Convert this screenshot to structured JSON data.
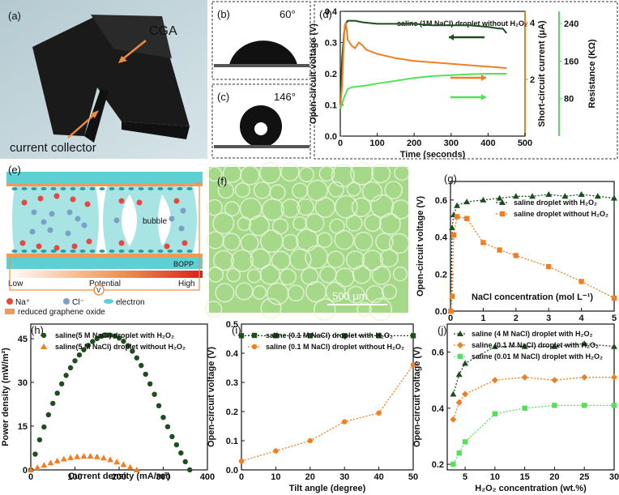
{
  "colors": {
    "dark_green": "#1e4d1e",
    "orange": "#f07e22",
    "light_green": "#55e05a",
    "teal": "#48c8cc",
    "micro_bg": "#a6d88a"
  },
  "panel_a": {
    "label": "(a)",
    "cga": "CGA",
    "collector": "current collector"
  },
  "panel_b": {
    "label": "(b)",
    "angle": "60°"
  },
  "panel_c": {
    "label": "(c)",
    "angle": "146°"
  },
  "panel_d": {
    "label": "(d)"
  },
  "panel_e": {
    "label": "(e)",
    "bubble": "bubble",
    "bopp": "BOPP",
    "low": "Low",
    "potential": "Potential",
    "high": "High",
    "volt": "V",
    "na": "Na⁺",
    "cl": "Cl⁻",
    "electron": "electron",
    "rgo": "reduced graphene oxide"
  },
  "panel_f": {
    "label": "(f)",
    "scale": "500 μm"
  },
  "panel_g": {
    "label": "(g)"
  },
  "panel_h": {
    "label": "(h)"
  },
  "panel_i": {
    "label": "(i)"
  },
  "panel_j": {
    "label": "(j)"
  },
  "chart_data": [
    {
      "id": "d",
      "type": "line",
      "title": "saline (1M NaCl) droplet without H₂O₂",
      "xlabel": "Time (seconds)",
      "ylabel": "Open-circuit voltage (V)",
      "ylabel_right1": "Short-circuit current (μA)",
      "ylabel_right2": "Resistance (KΩ)",
      "xlim": [
        0,
        500
      ],
      "xticks": [
        0,
        100,
        200,
        300,
        400,
        500
      ],
      "ylim": [
        0,
        0.4
      ],
      "yticks": [
        0.0,
        0.1,
        0.2,
        0.3,
        0.4
      ],
      "ylim_right1": [
        0,
        4.4
      ],
      "yticks_right1": [
        2,
        4
      ],
      "ylim_right2": [
        0,
        266
      ],
      "yticks_right2": [
        80,
        160,
        240
      ],
      "series": [
        {
          "name": "Open-circuit voltage",
          "axis": "left",
          "x": [
            0,
            5,
            10,
            15,
            20,
            40,
            60,
            100,
            150,
            200,
            250,
            300,
            350,
            400,
            430,
            440,
            450
          ],
          "values": [
            0.1,
            0.25,
            0.33,
            0.36,
            0.37,
            0.37,
            0.365,
            0.36,
            0.36,
            0.36,
            0.355,
            0.355,
            0.355,
            0.35,
            0.345,
            0.345,
            0.33
          ]
        },
        {
          "name": "Short-circuit current",
          "axis": "right1",
          "x": [
            0,
            5,
            10,
            12,
            15,
            18,
            20,
            25,
            30,
            40,
            50,
            60,
            70,
            100,
            150,
            200,
            250,
            300,
            350,
            400,
            450
          ],
          "values": [
            1.0,
            1.8,
            3.5,
            3.9,
            4.0,
            3.7,
            3.4,
            3.3,
            3.2,
            3.1,
            3.3,
            3.2,
            3.05,
            2.9,
            2.75,
            2.65,
            2.6,
            2.55,
            2.5,
            2.45,
            2.4
          ]
        },
        {
          "name": "Resistance",
          "axis": "right2",
          "x": [
            0,
            5,
            10,
            20,
            30,
            50,
            70,
            100,
            150,
            200,
            250,
            300,
            350,
            400,
            450
          ],
          "values": [
            58,
            70,
            82,
            100,
            104,
            106,
            108,
            112,
            118,
            124,
            128,
            130,
            132,
            133,
            133
          ]
        }
      ]
    },
    {
      "id": "g",
      "type": "line",
      "xlabel": "NaCl concentration (mol L⁻¹)",
      "ylabel": "Open-circuit voltage (V)",
      "xlim": [
        0,
        5
      ],
      "xticks": [
        0,
        1,
        2,
        3,
        4,
        5
      ],
      "ylim": [
        0,
        0.7
      ],
      "yticks": [
        0.0,
        0.2,
        0.4,
        0.6
      ],
      "series": [
        {
          "name": "saline droplet with H₂O₂",
          "marker": "triangle",
          "x": [
            0.01,
            0.05,
            0.1,
            0.2,
            0.5,
            1,
            1.5,
            2,
            2.5,
            3,
            3.5,
            4,
            4.5,
            5
          ],
          "values": [
            0.0,
            0.45,
            0.52,
            0.57,
            0.59,
            0.6,
            0.61,
            0.62,
            0.62,
            0.63,
            0.62,
            0.63,
            0.62,
            0.61
          ]
        },
        {
          "name": "saline droplet without H₂O₂",
          "marker": "square",
          "x": [
            0.01,
            0.05,
            0.1,
            0.2,
            0.5,
            1,
            1.5,
            2,
            3,
            4,
            5
          ],
          "values": [
            0.0,
            0.08,
            0.41,
            0.51,
            0.5,
            0.37,
            0.33,
            0.3,
            0.24,
            0.16,
            0.07
          ]
        }
      ]
    },
    {
      "id": "h",
      "type": "scatter",
      "xlabel": "Current density (mA/m²)",
      "ylabel": "Power density (mW/m²)",
      "xlim": [
        0,
        400
      ],
      "xticks": [
        0,
        100,
        200,
        300,
        400
      ],
      "ylim": [
        0,
        50
      ],
      "yticks": [
        0,
        15,
        30,
        45
      ],
      "series": [
        {
          "name": "saline(5 M NaCl) droplet with H₂O₂",
          "marker": "circle",
          "x": [
            0,
            10,
            20,
            30,
            40,
            50,
            60,
            70,
            80,
            90,
            100,
            110,
            120,
            130,
            140,
            150,
            160,
            170,
            180,
            190,
            200,
            210,
            220,
            230,
            240,
            250,
            260,
            270,
            280,
            290,
            300,
            310,
            320,
            330,
            340,
            350,
            360
          ],
          "values": [
            0,
            5.4,
            10.3,
            14.7,
            18.9,
            22.8,
            26.3,
            29.5,
            32.4,
            35.0,
            37.4,
            39.4,
            41.2,
            42.7,
            44.0,
            45.0,
            45.8,
            46.2,
            46.2,
            45.9,
            45.2,
            44.1,
            42.6,
            40.7,
            38.4,
            35.8,
            32.8,
            29.5,
            25.9,
            22.0,
            18.0,
            14.8,
            11.4,
            8.6,
            5.8,
            2.8,
            0
          ]
        },
        {
          "name": "saline(5 M NaCl) droplet without H₂O₂",
          "marker": "triangle",
          "x": [
            0,
            15,
            30,
            45,
            60,
            75,
            90,
            105,
            120,
            135,
            150,
            165,
            180,
            195,
            210,
            225,
            240
          ],
          "values": [
            0,
            0.8,
            1.6,
            2.4,
            3.1,
            3.7,
            4.2,
            4.5,
            4.7,
            4.7,
            4.5,
            4.1,
            3.5,
            2.7,
            1.8,
            0.9,
            0
          ]
        }
      ]
    },
    {
      "id": "i",
      "type": "line",
      "xlabel": "Tilt angle (degree)",
      "ylabel": "Open-circuit voltage (V)",
      "xlim": [
        0,
        50
      ],
      "xticks": [
        0,
        10,
        20,
        30,
        40,
        50
      ],
      "ylim": [
        0,
        0.5
      ],
      "yticks": [
        0.0,
        0.1,
        0.2,
        0.3,
        0.4,
        0.5
      ],
      "series": [
        {
          "name": "saline (0.1 M NaCl) droplet with H₂O₂",
          "marker": "square",
          "x": [
            0,
            10,
            20,
            30,
            40,
            50
          ],
          "values": [
            0.46,
            0.46,
            0.46,
            0.46,
            0.46,
            0.46
          ]
        },
        {
          "name": "saline (0.1 M NaCl) droplet without H₂O₂",
          "marker": "circle",
          "x": [
            0,
            10,
            20,
            30,
            40,
            50
          ],
          "values": [
            0.03,
            0.065,
            0.1,
            0.165,
            0.195,
            0.36
          ]
        }
      ]
    },
    {
      "id": "j",
      "type": "line",
      "xlabel": "H₂O₂ concentration (wt.%)",
      "ylabel": "Open-circuit voltage (V)",
      "xlim": [
        2,
        30
      ],
      "xticks": [
        5,
        10,
        15,
        20,
        25,
        30
      ],
      "ylim": [
        0.18,
        0.7
      ],
      "yticks": [
        0.2,
        0.4,
        0.6
      ],
      "series": [
        {
          "name": "saline (4 M NaCl) droplet with H₂O₂",
          "marker": "triangle",
          "x": [
            3,
            4,
            5,
            10,
            15,
            20,
            25,
            30
          ],
          "values": [
            0.45,
            0.52,
            0.56,
            0.62,
            0.62,
            0.62,
            0.63,
            0.62
          ]
        },
        {
          "name": "saline (0.1 M NaCl) droplet with H₂O₂",
          "marker": "diamond",
          "x": [
            3,
            4,
            5,
            10,
            15,
            20,
            25,
            30
          ],
          "values": [
            0.36,
            0.42,
            0.45,
            0.5,
            0.51,
            0.5,
            0.51,
            0.51
          ]
        },
        {
          "name": "saline (0.01 M NaCl) droplet with H₂O₂",
          "marker": "square",
          "x": [
            3,
            4,
            5,
            10,
            15,
            20,
            25,
            30
          ],
          "values": [
            0.2,
            0.24,
            0.28,
            0.38,
            0.4,
            0.41,
            0.41,
            0.41
          ]
        }
      ]
    }
  ]
}
